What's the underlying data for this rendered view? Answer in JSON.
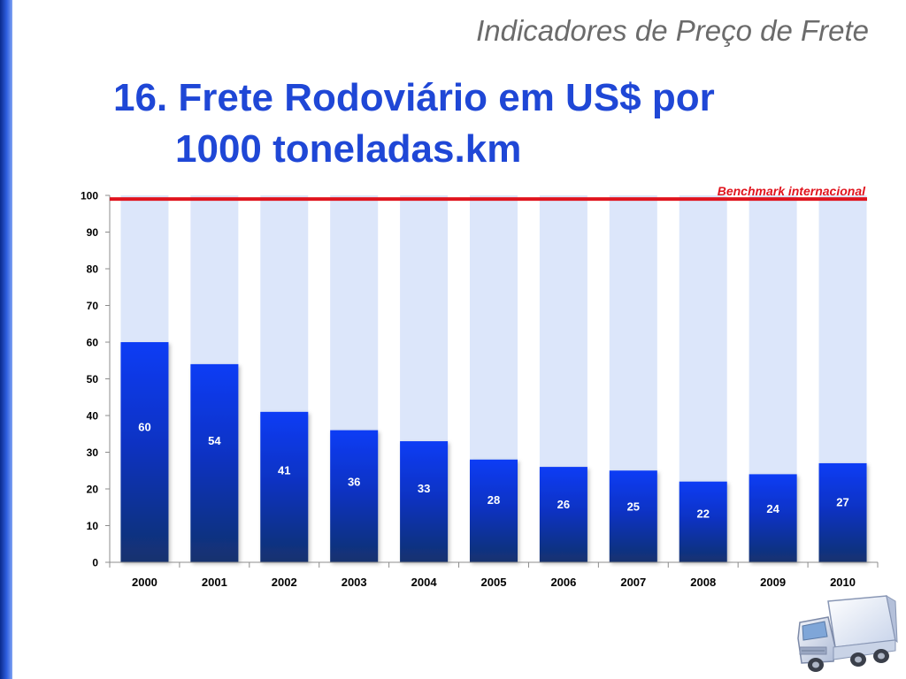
{
  "header": {
    "title": "Indicadores de Preço de Frete"
  },
  "slide": {
    "title_line1": "16. Frete Rodoviário em US$ por",
    "title_line2": "1000 toneladas.km"
  },
  "chart_data": {
    "type": "bar",
    "categories": [
      "2000",
      "2001",
      "2002",
      "2003",
      "2004",
      "2005",
      "2006",
      "2007",
      "2008",
      "2009",
      "2010"
    ],
    "values": [
      60,
      54,
      41,
      36,
      33,
      28,
      26,
      25,
      22,
      24,
      27
    ],
    "data_labels": [
      "60",
      "54",
      "41",
      "36",
      "33",
      "28",
      "26",
      "25",
      "22",
      "24",
      "27"
    ],
    "ylim": [
      0,
      100
    ],
    "yticks": [
      0,
      10,
      20,
      30,
      40,
      50,
      60,
      70,
      80,
      90,
      100
    ],
    "benchmark": {
      "value": 99,
      "label": "Benchmark internacional",
      "color": "#e0141e"
    },
    "colors": {
      "bar_top": "#0b3cf5",
      "bar_bottom": "#13336e",
      "track": "#dce6fa"
    },
    "grid": false,
    "title": "",
    "xlabel": "",
    "ylabel": ""
  },
  "icons": {
    "truck": "delivery-truck-icon"
  }
}
